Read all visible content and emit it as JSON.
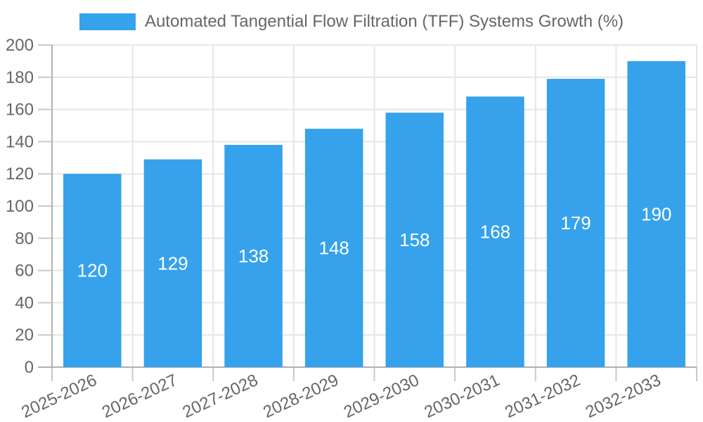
{
  "chart_data": {
    "type": "bar",
    "title": "Automated Tangential Flow Filtration (TFF) Systems Growth (%)",
    "legend": {
      "position": "top",
      "label": "Automated Tangential Flow Filtration (TFF) Systems Growth (%)"
    },
    "categories": [
      "2025-2026",
      "2026-2027",
      "2027-2028",
      "2028-2029",
      "2029-2030",
      "2030-2031",
      "2031-2032",
      "2032-2033"
    ],
    "series": [
      {
        "name": "Automated Tangential Flow Filtration (TFF) Systems Growth (%)",
        "values": [
          120,
          129,
          138,
          148,
          158,
          168,
          179,
          190
        ]
      }
    ],
    "value_labels_shown": true,
    "xlabel": "",
    "ylabel": "",
    "ylim": [
      0,
      200
    ],
    "ytick_step": 20,
    "yticks": [
      0,
      20,
      40,
      60,
      80,
      100,
      120,
      140,
      160,
      180,
      200
    ],
    "x_label_rotation_deg": -25,
    "grid": true,
    "colors": {
      "bar": "#36A2EB",
      "value_label": "#ffffff",
      "axis_text": "#666666",
      "grid_line": "#e6e6e6",
      "axis_line": "#b0b0b0",
      "tick_mark": "#c9c9c9",
      "background": "#ffffff"
    }
  }
}
